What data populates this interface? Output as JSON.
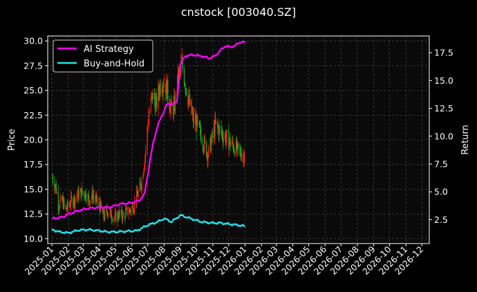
{
  "chart_data": {
    "type": "line",
    "title": "cnstock [003040.SZ]",
    "ylabel_left": "Price",
    "ylabel_right": "Return",
    "grid": true,
    "legend_position": "top-left",
    "background": "#000000",
    "x_ticks": [
      "2025-01",
      "2025-02",
      "2025-03",
      "2025-04",
      "2025-05",
      "2025-06",
      "2025-07",
      "2025-08",
      "2025-09",
      "2025-10",
      "2025-11",
      "2025-12",
      "2026-01",
      "2026-02",
      "2026-03",
      "2026-04",
      "2026-05",
      "2026-06",
      "2026-07",
      "2026-08",
      "2026-09",
      "2026-10",
      "2026-11",
      "2026-12"
    ],
    "x_range": [
      "2024-12-24",
      "2026-12-15"
    ],
    "left_axis": {
      "ticks": [
        10.0,
        12.5,
        15.0,
        17.5,
        20.0,
        22.5,
        25.0,
        27.5,
        30.0
      ],
      "tick_labels": [
        "10.0",
        "12.5",
        "15.0",
        "17.5",
        "20.0",
        "22.5",
        "25.0",
        "27.5",
        "30.0"
      ],
      "ylim": [
        9.5,
        30.5
      ]
    },
    "right_axis": {
      "ticks": [
        2.5,
        5.0,
        7.5,
        10.0,
        12.5,
        15.0,
        17.5
      ],
      "tick_labels": [
        "2.5",
        "5.0",
        "7.5",
        "10.0",
        "12.5",
        "15.0",
        "17.5"
      ],
      "ylim": [
        0.35,
        19.0
      ]
    },
    "price_series": {
      "name": "Price",
      "up_color": "#ff2200",
      "down_color": "#22aa22",
      "points": [
        [
          "2025-01-02",
          16.2
        ],
        [
          "2025-01-08",
          15.3
        ],
        [
          "2025-01-14",
          13.4
        ],
        [
          "2025-01-20",
          13.9
        ],
        [
          "2025-01-27",
          12.9
        ],
        [
          "2025-02-05",
          13.7
        ],
        [
          "2025-02-12",
          14.0
        ],
        [
          "2025-02-19",
          14.4
        ],
        [
          "2025-02-26",
          14.7
        ],
        [
          "2025-03-05",
          14.6
        ],
        [
          "2025-03-12",
          14.0
        ],
        [
          "2025-03-19",
          14.4
        ],
        [
          "2025-03-26",
          13.8
        ],
        [
          "2025-04-02",
          13.3
        ],
        [
          "2025-04-09",
          12.2
        ],
        [
          "2025-04-16",
          12.8
        ],
        [
          "2025-04-23",
          12.4
        ],
        [
          "2025-04-30",
          12.1
        ],
        [
          "2025-05-08",
          12.5
        ],
        [
          "2025-05-15",
          12.3
        ],
        [
          "2025-05-22",
          12.7
        ],
        [
          "2025-05-29",
          12.9
        ],
        [
          "2025-06-05",
          13.4
        ],
        [
          "2025-06-12",
          14.5
        ],
        [
          "2025-06-19",
          15.6
        ],
        [
          "2025-06-26",
          18.5
        ],
        [
          "2025-07-03",
          22.5
        ],
        [
          "2025-07-10",
          24.5
        ],
        [
          "2025-07-17",
          23.5
        ],
        [
          "2025-07-24",
          25.5
        ],
        [
          "2025-07-31",
          26.0
        ],
        [
          "2025-08-07",
          25.0
        ],
        [
          "2025-08-14",
          23.0
        ],
        [
          "2025-08-21",
          23.5
        ],
        [
          "2025-08-28",
          26.5
        ],
        [
          "2025-09-04",
          27.5
        ],
        [
          "2025-09-11",
          25.5
        ],
        [
          "2025-09-18",
          23.5
        ],
        [
          "2025-09-25",
          22.0
        ],
        [
          "2025-10-02",
          21.5
        ],
        [
          "2025-10-09",
          20.5
        ],
        [
          "2025-10-16",
          19.5
        ],
        [
          "2025-10-23",
          18.5
        ],
        [
          "2025-10-30",
          20.0
        ],
        [
          "2025-11-06",
          21.5
        ],
        [
          "2025-11-13",
          21.0
        ],
        [
          "2025-11-20",
          20.5
        ],
        [
          "2025-11-27",
          20.2
        ],
        [
          "2025-12-04",
          19.7
        ],
        [
          "2025-12-11",
          19.3
        ],
        [
          "2025-12-18",
          18.9
        ],
        [
          "2025-12-25",
          18.7
        ],
        [
          "2026-01-01",
          18.2
        ]
      ]
    },
    "series": [
      {
        "name": "AI Strategy",
        "color": "#ff00ff",
        "points": [
          [
            "2025-01-01",
            2.6
          ],
          [
            "2025-01-20",
            2.7
          ],
          [
            "2025-02-01",
            3.0
          ],
          [
            "2025-02-20",
            3.3
          ],
          [
            "2025-03-10",
            3.5
          ],
          [
            "2025-04-01",
            3.6
          ],
          [
            "2025-04-20",
            3.6
          ],
          [
            "2025-05-10",
            3.9
          ],
          [
            "2025-05-30",
            4.0
          ],
          [
            "2025-06-15",
            4.2
          ],
          [
            "2025-06-25",
            4.8
          ],
          [
            "2025-07-01",
            6.5
          ],
          [
            "2025-07-06",
            8.0
          ],
          [
            "2025-07-12",
            9.5
          ],
          [
            "2025-07-20",
            11.0
          ],
          [
            "2025-07-28",
            11.8
          ],
          [
            "2025-08-05",
            12.8
          ],
          [
            "2025-08-15",
            12.9
          ],
          [
            "2025-08-25",
            13.0
          ],
          [
            "2025-09-01",
            16.5
          ],
          [
            "2025-09-10",
            17.2
          ],
          [
            "2025-09-25",
            17.3
          ],
          [
            "2025-10-10",
            17.2
          ],
          [
            "2025-10-25",
            17.0
          ],
          [
            "2025-11-05",
            17.2
          ],
          [
            "2025-11-15",
            17.7
          ],
          [
            "2025-11-25",
            18.1
          ],
          [
            "2025-12-05",
            18.0
          ],
          [
            "2025-12-15",
            18.2
          ],
          [
            "2025-12-25",
            18.5
          ],
          [
            "2026-01-01",
            18.4
          ]
        ]
      },
      {
        "name": "Buy-and-Hold",
        "color": "#22e5f0",
        "points": [
          [
            "2025-01-01",
            1.6
          ],
          [
            "2025-01-15",
            1.4
          ],
          [
            "2025-02-01",
            1.3
          ],
          [
            "2025-02-20",
            1.55
          ],
          [
            "2025-03-10",
            1.6
          ],
          [
            "2025-04-01",
            1.5
          ],
          [
            "2025-04-15",
            1.4
          ],
          [
            "2025-05-01",
            1.4
          ],
          [
            "2025-05-20",
            1.45
          ],
          [
            "2025-06-10",
            1.5
          ],
          [
            "2025-07-01",
            2.0
          ],
          [
            "2025-07-20",
            2.3
          ],
          [
            "2025-08-01",
            2.6
          ],
          [
            "2025-08-15",
            2.3
          ],
          [
            "2025-09-01",
            2.9
          ],
          [
            "2025-09-20",
            2.6
          ],
          [
            "2025-10-10",
            2.3
          ],
          [
            "2025-10-30",
            2.2
          ],
          [
            "2025-11-15",
            2.2
          ],
          [
            "2025-12-01",
            2.1
          ],
          [
            "2025-12-20",
            2.0
          ],
          [
            "2026-01-01",
            1.9
          ]
        ]
      }
    ]
  }
}
